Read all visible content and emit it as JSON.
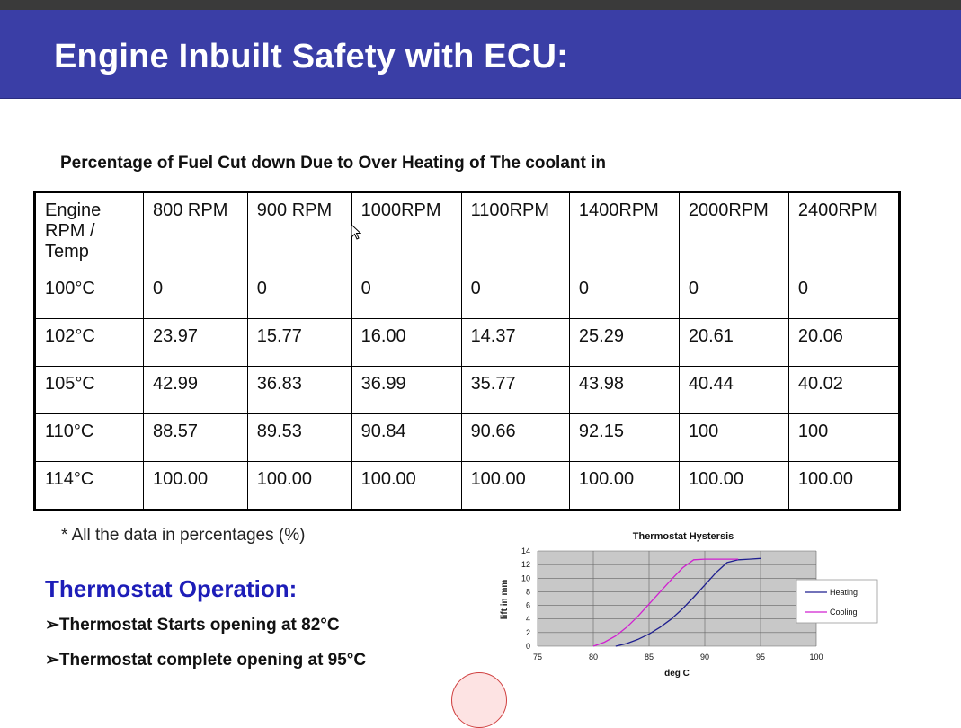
{
  "slide": {
    "title": "Engine Inbuilt Safety with ECU:",
    "table_title": "Percentage of Fuel Cut down Due to Over Heating of The coolant in",
    "note": "* All the data in percentages (%)",
    "thermostat_heading": "Thermostat Operation:",
    "bullets": [
      "➢Thermostat Starts opening at 82°C",
      "➢Thermostat complete opening at 95°C"
    ]
  },
  "table": {
    "header": [
      "Engine RPM / Temp",
      "800 RPM",
      "900 RPM",
      "1000RPM",
      "1100RPM",
      "1400RPM",
      "2000RPM",
      "2400RPM"
    ],
    "rows": [
      [
        "100°C",
        "0",
        "0",
        "0",
        "0",
        "0",
        "0",
        "0"
      ],
      [
        "102°C",
        "23.97",
        "15.77",
        "16.00",
        "14.37",
        "25.29",
        "20.61",
        "20.06"
      ],
      [
        "105°C",
        "42.99",
        "36.83",
        "36.99",
        "35.77",
        "43.98",
        "40.44",
        "40.02"
      ],
      [
        "110°C",
        "88.57",
        "89.53",
        "90.84",
        "90.66",
        "92.15",
        "100",
        "100"
      ],
      [
        "114°C",
        "100.00",
        "100.00",
        "100.00",
        "100.00",
        "100.00",
        "100.00",
        "100.00"
      ]
    ]
  },
  "chart_data": {
    "type": "line",
    "title": "Thermostat Hystersis",
    "xlabel": "deg C",
    "ylabel": "lift in mm",
    "xlim": [
      75,
      100
    ],
    "ylim": [
      0,
      14
    ],
    "xticks": [
      "75",
      "80",
      "85",
      "90",
      "95",
      "100"
    ],
    "yticks": [
      "0",
      "2",
      "4",
      "6",
      "8",
      "10",
      "12",
      "14"
    ],
    "grid": true,
    "legend": "right",
    "series": [
      {
        "name": "Heating",
        "color": "#1f1f8f",
        "x": [
          82,
          83,
          84,
          85,
          86,
          87,
          88,
          89,
          90,
          91,
          92,
          93,
          94,
          95
        ],
        "y": [
          0,
          0.4,
          1.0,
          1.8,
          2.8,
          4.0,
          5.5,
          7.2,
          9.0,
          10.8,
          12.3,
          12.7,
          12.8,
          12.9
        ]
      },
      {
        "name": "Cooling",
        "color": "#d020d0",
        "x": [
          80,
          81,
          82,
          83,
          84,
          85,
          86,
          87,
          88,
          89,
          90,
          91,
          92,
          93
        ],
        "y": [
          0,
          0.6,
          1.5,
          2.8,
          4.4,
          6.2,
          8.0,
          9.8,
          11.5,
          12.7,
          12.8,
          12.8,
          12.8,
          12.8
        ]
      }
    ]
  }
}
